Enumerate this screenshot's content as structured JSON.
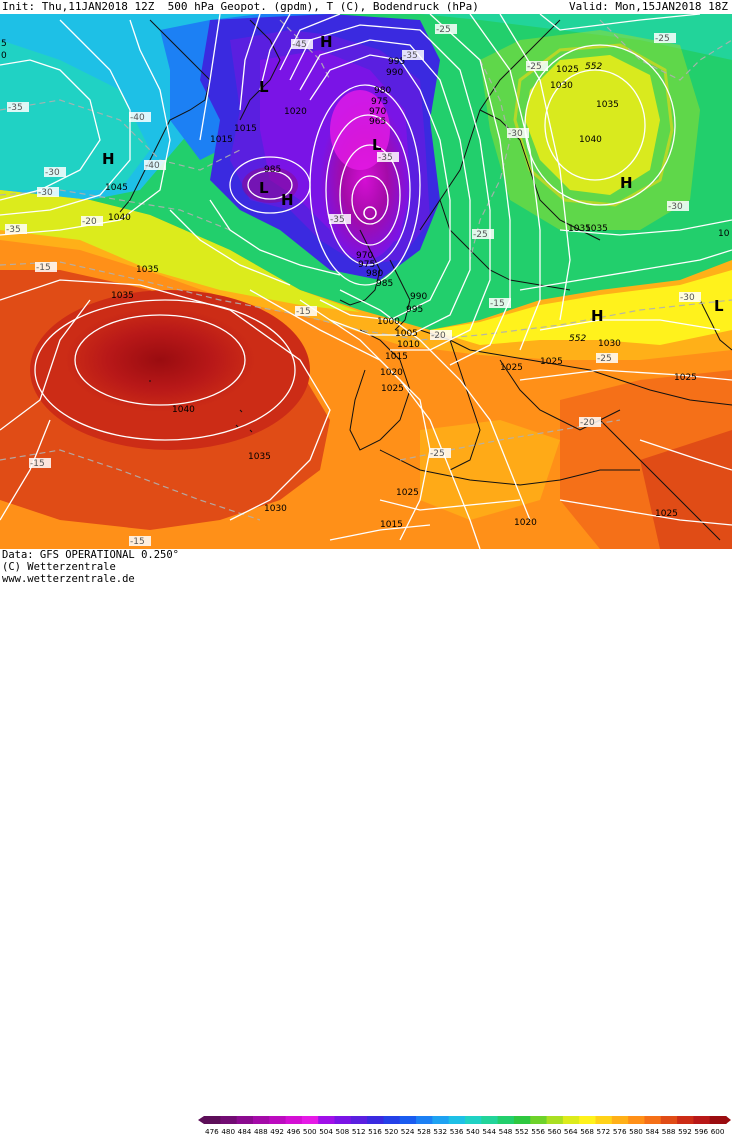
{
  "header": {
    "init": "Init: Thu,11JAN2018 12Z",
    "field": "500 hPa Geopot. (gpdm), T (C), Bodendruck (hPa)",
    "valid": "Valid: Mon,15JAN2018 18Z"
  },
  "footer": {
    "data": "Data: GFS OPERATIONAL 0.250°",
    "copyright": "(C) Wetterzentrale",
    "url": "www.wetterzentrale.de"
  },
  "colorbar": {
    "labels": [
      "476",
      "480",
      "484",
      "488",
      "492",
      "496",
      "500",
      "504",
      "508",
      "512",
      "516",
      "520",
      "524",
      "528",
      "532",
      "536",
      "540",
      "544",
      "548",
      "552",
      "556",
      "560",
      "564",
      "568",
      "572",
      "576",
      "580",
      "584",
      "588",
      "592",
      "596",
      "600"
    ],
    "colors": [
      "#5c0e58",
      "#720c73",
      "#8b0b8f",
      "#a40ba8",
      "#bc0bbf",
      "#d40fd4",
      "#e51ae6",
      "#a010e8",
      "#7a14e6",
      "#5a1fe0",
      "#3a2ae0",
      "#2440e8",
      "#1a5cf0",
      "#1c80f4",
      "#1ea2f2",
      "#1ec0e6",
      "#20d2c4",
      "#22d49a",
      "#22cf6c",
      "#2ec840",
      "#6ed22a",
      "#aadf22",
      "#dceb1c",
      "#fff21c",
      "#ffd218",
      "#ffb018",
      "#ff9018",
      "#f57018",
      "#e04c16",
      "#cc2c16",
      "#b81818",
      "#9a0c10"
    ]
  },
  "labels": {
    "pressure": [
      {
        "text": "995"
      },
      {
        "text": "990"
      },
      {
        "text": "980"
      },
      {
        "text": "975"
      },
      {
        "text": "970"
      },
      {
        "text": "965"
      },
      {
        "text": "1020"
      },
      {
        "text": "1015"
      },
      {
        "text": "1015"
      },
      {
        "text": "985"
      },
      {
        "text": "1045"
      },
      {
        "text": "1040"
      },
      {
        "text": "1035"
      },
      {
        "text": "1035"
      },
      {
        "text": "970"
      },
      {
        "text": "975"
      },
      {
        "text": "980"
      },
      {
        "text": "985"
      },
      {
        "text": "990"
      },
      {
        "text": "995"
      },
      {
        "text": "1000"
      },
      {
        "text": "1005"
      },
      {
        "text": "1010"
      },
      {
        "text": "1015"
      },
      {
        "text": "1020"
      },
      {
        "text": "1025"
      },
      {
        "text": "1040"
      },
      {
        "text": "1035"
      },
      {
        "text": "1030"
      },
      {
        "text": "1025"
      },
      {
        "text": "1015"
      },
      {
        "text": "1020"
      },
      {
        "text": "1025"
      },
      {
        "text": "1030"
      },
      {
        "text": "1035"
      },
      {
        "text": "1040"
      },
      {
        "text": "1035"
      },
      {
        "text": "1025"
      },
      {
        "text": "1030"
      },
      {
        "text": "1025"
      },
      {
        "text": "1025"
      },
      {
        "text": "1035"
      },
      {
        "text": "1025"
      },
      {
        "text": "5"
      },
      {
        "text": "0"
      },
      {
        "text": "10"
      }
    ],
    "temperature": [
      {
        "text": "-35"
      },
      {
        "text": "-40"
      },
      {
        "text": "-45"
      },
      {
        "text": "-35"
      },
      {
        "text": "-30"
      },
      {
        "text": "-35"
      },
      {
        "text": "-40"
      },
      {
        "text": "-30"
      },
      {
        "text": "-25"
      },
      {
        "text": "-20"
      },
      {
        "text": "-15"
      },
      {
        "text": "-35"
      },
      {
        "text": "-25"
      },
      {
        "text": "-15"
      },
      {
        "text": "-20"
      },
      {
        "text": "-25"
      },
      {
        "text": "-30"
      },
      {
        "text": "-25"
      },
      {
        "text": "-30"
      },
      {
        "text": "-35"
      },
      {
        "text": "-30"
      },
      {
        "text": "-25"
      },
      {
        "text": "-20"
      },
      {
        "text": "-15"
      },
      {
        "text": "-25"
      },
      {
        "text": "-15"
      },
      {
        "text": "-15"
      }
    ],
    "geopotential": [
      {
        "text": "552"
      },
      {
        "text": "552"
      }
    ],
    "highs": [
      {
        "text": "H"
      },
      {
        "text": "H"
      },
      {
        "text": "H"
      },
      {
        "text": "H"
      },
      {
        "text": "H"
      }
    ],
    "lows": [
      {
        "text": "L"
      },
      {
        "text": "L"
      },
      {
        "text": "L"
      },
      {
        "text": "L"
      }
    ]
  }
}
